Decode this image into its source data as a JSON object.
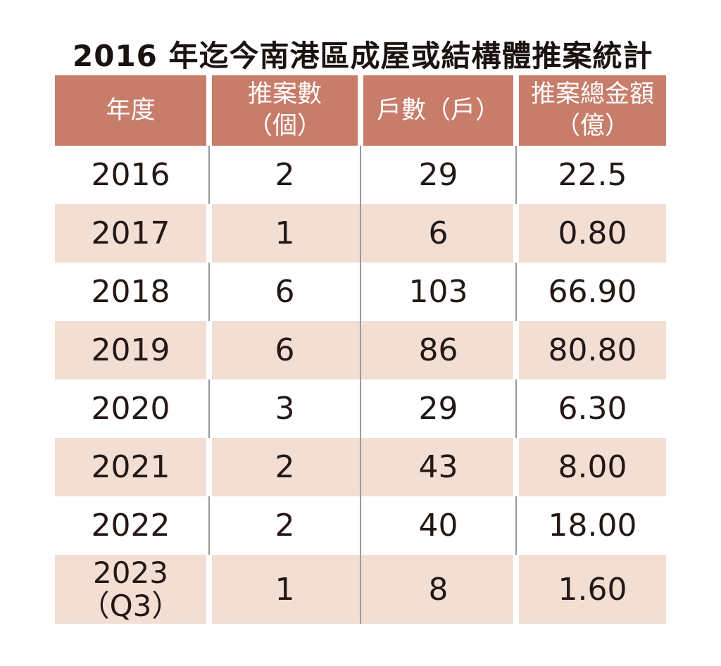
{
  "title": "2016 年迄今南港區成屋或結構體推案統計",
  "colors": {
    "header_bg": "#C87D6B",
    "header_text": "#FFFFFF",
    "row_alt_bg": "#F2DED3",
    "row_bg": "#FFFFFF",
    "divider_line": "#9A9A9A",
    "data_text": "#231815",
    "title_text": "#1A1311"
  },
  "table": {
    "headers": [
      {
        "line1": "年度",
        "line2": ""
      },
      {
        "line1": "推案數",
        "line2": "（個）"
      },
      {
        "line1": "戶數（戶）",
        "line2": ""
      },
      {
        "line1": "推案總金額",
        "line2": "（億）"
      }
    ],
    "rows": [
      {
        "year": "2016",
        "year2": "",
        "cases": "2",
        "units": "29",
        "amount": "22.5"
      },
      {
        "year": "2017",
        "year2": "",
        "cases": "1",
        "units": "6",
        "amount": "0.80"
      },
      {
        "year": "2018",
        "year2": "",
        "cases": "6",
        "units": "103",
        "amount": "66.90"
      },
      {
        "year": "2019",
        "year2": "",
        "cases": "6",
        "units": "86",
        "amount": "80.80"
      },
      {
        "year": "2020",
        "year2": "",
        "cases": "3",
        "units": "29",
        "amount": "6.30"
      },
      {
        "year": "2021",
        "year2": "",
        "cases": "2",
        "units": "43",
        "amount": "8.00"
      },
      {
        "year": "2022",
        "year2": "",
        "cases": "2",
        "units": "40",
        "amount": "18.00"
      },
      {
        "year": "2023",
        "year2": "（Q3）",
        "cases": "1",
        "units": "8",
        "amount": "1.60"
      }
    ]
  },
  "chart_data": {
    "type": "table",
    "title": "2016 年迄今南港區成屋或結構體推案統計",
    "columns": [
      "年度",
      "推案數（個）",
      "戶數（戶）",
      "推案總金額（億）"
    ],
    "rows": [
      [
        "2016",
        2,
        29,
        22.5
      ],
      [
        "2017",
        1,
        6,
        0.8
      ],
      [
        "2018",
        6,
        103,
        66.9
      ],
      [
        "2019",
        6,
        86,
        80.8
      ],
      [
        "2020",
        3,
        29,
        6.3
      ],
      [
        "2021",
        2,
        43,
        8.0
      ],
      [
        "2022",
        2,
        40,
        18.0
      ],
      [
        "2023（Q3）",
        1,
        8,
        1.6
      ]
    ],
    "notes": "Rows alternate white and light-pink backgrounds starting with white for 2016; header row is terracotta with white text."
  }
}
